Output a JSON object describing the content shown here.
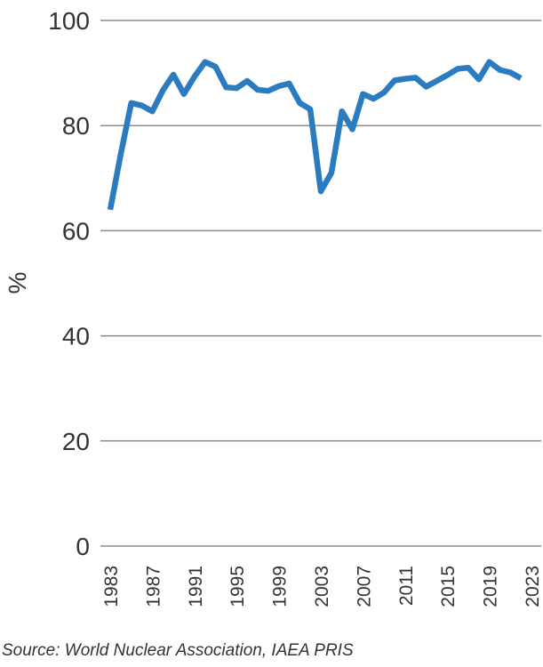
{
  "chart_data": {
    "type": "line",
    "title": "",
    "xlabel": "",
    "ylabel": "%",
    "ylim": [
      0,
      100
    ],
    "xlim": [
      1983,
      2023
    ],
    "y_ticks": [
      0,
      20,
      40,
      60,
      80,
      100
    ],
    "x_ticks": [
      1983,
      1987,
      1991,
      1995,
      1999,
      2003,
      2007,
      2011,
      2015,
      2019,
      2023
    ],
    "grid": true,
    "legend": "none",
    "series": [
      {
        "color": "#2a7bbf",
        "x": [
          1983,
          1984,
          1985,
          1986,
          1987,
          1988,
          1989,
          1990,
          1991,
          1992,
          1993,
          1994,
          1995,
          1996,
          1997,
          1998,
          1999,
          2000,
          2001,
          2002,
          2003,
          2004,
          2005,
          2006,
          2007,
          2008,
          2009,
          2010,
          2011,
          2012,
          2013,
          2014,
          2015,
          2016,
          2017,
          2018,
          2019,
          2020,
          2021,
          2022
        ],
        "values": [
          64.0,
          74.5,
          84.3,
          83.8,
          82.7,
          86.7,
          89.7,
          86.0,
          89.3,
          92.1,
          91.2,
          87.3,
          87.1,
          88.5,
          86.8,
          86.6,
          87.5,
          88.0,
          84.3,
          83.1,
          67.5,
          71.0,
          82.7,
          79.3,
          86.0,
          85.1,
          86.3,
          88.6,
          88.9,
          89.1,
          87.4,
          88.5,
          89.6,
          90.8,
          91.0,
          88.8,
          92.1,
          90.6,
          90.1,
          89.0
        ]
      }
    ]
  },
  "source_note": "Source: World Nuclear Association, IAEA PRIS"
}
